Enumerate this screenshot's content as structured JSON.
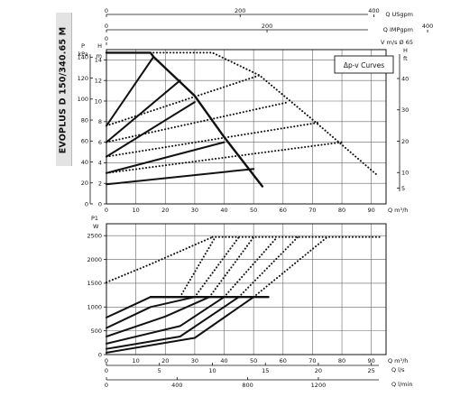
{
  "model": "EVOPLUS D 150/340.65 M",
  "chart_data": [
    {
      "type": "line",
      "title": "",
      "legend": "Δp-v Curves",
      "xlabel": "Q m³/h",
      "xlim": [
        0,
        95
      ],
      "x_ticks": [
        0,
        10,
        20,
        30,
        40,
        50,
        60,
        70,
        80,
        90
      ],
      "ylabel_left": "H m",
      "ylim_left": [
        0,
        15
      ],
      "y_ticks_left": [
        0,
        2,
        4,
        6,
        8,
        10,
        12,
        14
      ],
      "ylabel_left_pressure": "P kPa",
      "y_ticks_pressure": [
        0,
        20,
        40,
        60,
        80,
        100,
        120,
        140
      ],
      "ylabel_right": "H ft",
      "y_ticks_right": [
        5,
        10,
        20,
        30,
        40
      ],
      "top_axes": [
        {
          "label": "Q USgpm",
          "ticks": [
            0,
            200,
            400,
            600,
            800,
            1000
          ]
        },
        {
          "label": "Q IMPgpm",
          "ticks": [
            0,
            200,
            400,
            600,
            800
          ]
        },
        {
          "label": "V m/s Ø 65",
          "ticks": [
            "0"
          ]
        }
      ],
      "grid": true,
      "series": [
        {
          "style": "solid-heavy",
          "x": [
            0,
            15,
            16,
            30,
            40,
            53
          ],
          "y": [
            14.7,
            14.7,
            14.3,
            10.5,
            6.5,
            1.7
          ]
        },
        {
          "style": "dotted",
          "x": [
            16,
            36,
            52,
            70,
            92
          ],
          "y": [
            14.7,
            14.7,
            12.5,
            8.2,
            2.8
          ]
        },
        {
          "style": "solid",
          "x": [
            0,
            16
          ],
          "y": [
            7.6,
            14.3
          ]
        },
        {
          "style": "solid",
          "x": [
            0,
            25
          ],
          "y": [
            6,
            12.0
          ]
        },
        {
          "style": "solid",
          "x": [
            0,
            30
          ],
          "y": [
            4.6,
            9.9
          ]
        },
        {
          "style": "solid",
          "x": [
            0,
            40
          ],
          "y": [
            3,
            6.0
          ]
        },
        {
          "style": "solid",
          "x": [
            0,
            50
          ],
          "y": [
            1.9,
            3.4
          ]
        },
        {
          "style": "dotted",
          "x": [
            0,
            52
          ],
          "y": [
            7.6,
            12.5
          ]
        },
        {
          "style": "dotted",
          "x": [
            0,
            62
          ],
          "y": [
            6,
            9.9
          ]
        },
        {
          "style": "dotted",
          "x": [
            0,
            72
          ],
          "y": [
            4.6,
            7.9
          ]
        },
        {
          "style": "dotted",
          "x": [
            0,
            80
          ],
          "y": [
            3,
            6.0
          ]
        }
      ]
    },
    {
      "type": "line",
      "title": "",
      "ylabel": "P1 W",
      "xlabel": "Q m³/h",
      "xlim": [
        0,
        95
      ],
      "x_ticks": [
        0,
        10,
        20,
        30,
        40,
        50,
        60,
        70,
        80,
        90
      ],
      "ylim": [
        0,
        2750
      ],
      "y_ticks": [
        0,
        500,
        1000,
        1500,
        2000,
        2500
      ],
      "bottom_axes": [
        {
          "label": "Q l/s",
          "ticks": [
            0,
            5,
            10,
            15,
            20,
            25
          ]
        },
        {
          "label": "Q l/min",
          "ticks": [
            0,
            400,
            800,
            1200
          ]
        }
      ],
      "grid": true,
      "series": [
        {
          "style": "solid",
          "x": [
            0,
            15,
            25
          ],
          "y": [
            780,
            1210,
            1210
          ]
        },
        {
          "style": "solid",
          "x": [
            0,
            15,
            30
          ],
          "y": [
            560,
            1000,
            1210
          ]
        },
        {
          "style": "solid",
          "x": [
            0,
            20,
            35
          ],
          "y": [
            380,
            800,
            1210
          ]
        },
        {
          "style": "solid",
          "x": [
            0,
            25,
            40
          ],
          "y": [
            230,
            600,
            1210
          ]
        },
        {
          "style": "solid",
          "x": [
            0,
            25,
            45
          ],
          "y": [
            120,
            380,
            1210
          ]
        },
        {
          "style": "solid",
          "x": [
            0,
            30,
            50
          ],
          "y": [
            40,
            350,
            1210
          ]
        },
        {
          "style": "solid-heavy",
          "x": [
            15,
            55
          ],
          "y": [
            1210,
            1210
          ]
        },
        {
          "style": "dotted",
          "x": [
            36,
            93
          ],
          "y": [
            2470,
            2470
          ]
        },
        {
          "style": "dotted",
          "x": [
            0,
            15,
            36
          ],
          "y": [
            1520,
            1900,
            2470
          ]
        },
        {
          "style": "dotted",
          "x": [
            25,
            37
          ],
          "y": [
            1210,
            2470
          ]
        },
        {
          "style": "dotted",
          "x": [
            30,
            45
          ],
          "y": [
            1210,
            2470
          ]
        },
        {
          "style": "dotted",
          "x": [
            35,
            50
          ],
          "y": [
            1210,
            2470
          ]
        },
        {
          "style": "dotted",
          "x": [
            40,
            58
          ],
          "y": [
            1210,
            2470
          ]
        },
        {
          "style": "dotted",
          "x": [
            45,
            65
          ],
          "y": [
            1210,
            2470
          ]
        },
        {
          "style": "dotted",
          "x": [
            50,
            75
          ],
          "y": [
            1210,
            2470
          ]
        }
      ]
    }
  ]
}
